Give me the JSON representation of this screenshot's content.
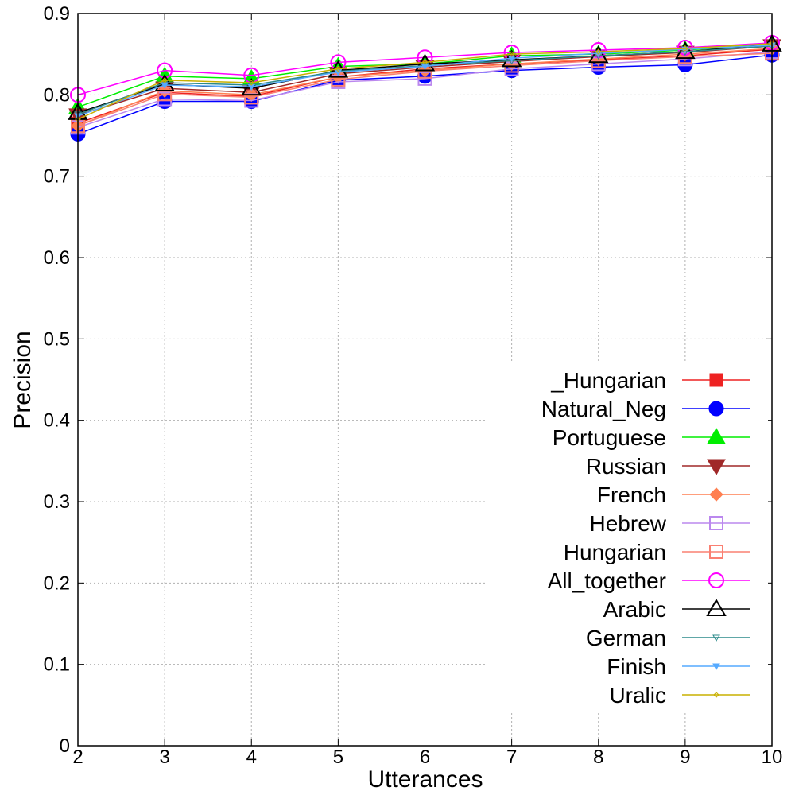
{
  "chart_data": {
    "type": "line",
    "title": "",
    "xlabel": "Utterances",
    "ylabel": "Precision",
    "x": [
      2,
      3,
      4,
      5,
      6,
      7,
      8,
      9,
      10
    ],
    "xlim": [
      2,
      10
    ],
    "ylim": [
      0,
      0.9
    ],
    "x_ticks": [
      "2",
      "3",
      "4",
      "5",
      "6",
      "7",
      "8",
      "9",
      "10"
    ],
    "y_ticks": [
      "0",
      "0.1",
      "0.2",
      "0.3",
      "0.4",
      "0.5",
      "0.6",
      "0.7",
      "0.8",
      "0.9"
    ],
    "grid": true,
    "legend_position": "bottom-right",
    "series": [
      {
        "name": "_Hungarian",
        "color": "#ee2222",
        "marker": "square-filled",
        "values": [
          0.765,
          0.803,
          0.798,
          0.822,
          0.832,
          0.838,
          0.843,
          0.848,
          0.856
        ]
      },
      {
        "name": "Natural_Neg",
        "color": "#0000ff",
        "marker": "circle-filled",
        "values": [
          0.752,
          0.792,
          0.792,
          0.818,
          0.823,
          0.83,
          0.834,
          0.837,
          0.849
        ]
      },
      {
        "name": "Portuguese",
        "color": "#00ee00",
        "marker": "triangle-up-filled",
        "values": [
          0.785,
          0.823,
          0.82,
          0.835,
          0.838,
          0.848,
          0.85,
          0.855,
          0.862
        ]
      },
      {
        "name": "Russian",
        "color": "#a02828",
        "marker": "triangle-down-filled",
        "values": [
          0.775,
          0.808,
          0.803,
          0.826,
          0.834,
          0.841,
          0.847,
          0.852,
          0.86
        ]
      },
      {
        "name": "French",
        "color": "#ff7f50",
        "marker": "diamond-filled",
        "values": [
          0.762,
          0.805,
          0.8,
          0.822,
          0.83,
          0.838,
          0.844,
          0.85,
          0.857
        ]
      },
      {
        "name": "Hebrew",
        "color": "#bb88ee",
        "marker": "square-open",
        "values": [
          0.76,
          0.795,
          0.793,
          0.816,
          0.82,
          0.832,
          0.838,
          0.844,
          0.853
        ]
      },
      {
        "name": "Hungarian",
        "color": "#fa8072",
        "marker": "square-open",
        "values": [
          0.762,
          0.801,
          0.797,
          0.819,
          0.829,
          0.836,
          0.842,
          0.847,
          0.851
        ]
      },
      {
        "name": "All_together",
        "color": "#ff00ff",
        "marker": "circle-open",
        "values": [
          0.8,
          0.83,
          0.824,
          0.84,
          0.846,
          0.852,
          0.855,
          0.858,
          0.864
        ]
      },
      {
        "name": "Arabic",
        "color": "#000000",
        "marker": "triangle-up-open",
        "values": [
          0.778,
          0.813,
          0.808,
          0.83,
          0.838,
          0.843,
          0.848,
          0.853,
          0.862
        ]
      },
      {
        "name": "German",
        "color": "#2b8a8a",
        "marker": "triangle-down-small",
        "values": [
          0.776,
          0.815,
          0.812,
          0.829,
          0.836,
          0.842,
          0.848,
          0.853,
          0.86
        ]
      },
      {
        "name": "Finish",
        "color": "#55aaff",
        "marker": "triangle-down-small-filled",
        "values": [
          0.774,
          0.812,
          0.81,
          0.828,
          0.835,
          0.845,
          0.851,
          0.856,
          0.861
        ]
      },
      {
        "name": "Uralic",
        "color": "#c8b000",
        "marker": "diamond-small",
        "values": [
          0.77,
          0.818,
          0.815,
          0.832,
          0.84,
          0.85,
          0.853,
          0.857,
          0.863
        ]
      }
    ]
  }
}
